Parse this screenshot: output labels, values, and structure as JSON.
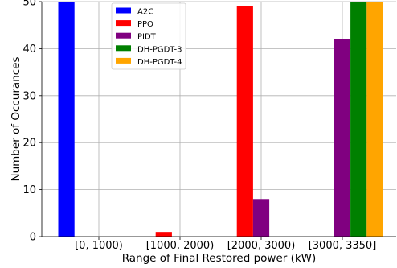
{
  "chart_data": {
    "type": "bar",
    "title": "",
    "xlabel": "Range of Final Restored power (kW)",
    "ylabel": "Number of Occurances",
    "categories": [
      "[0, 1000)",
      "[1000, 2000)",
      "[2000, 3000)",
      "[3000, 3350]"
    ],
    "series": [
      {
        "name": "A2C",
        "color": "#0000ff",
        "values": [
          50,
          0,
          0,
          0
        ]
      },
      {
        "name": "PPO",
        "color": "#ff0000",
        "values": [
          0,
          1,
          49,
          0
        ]
      },
      {
        "name": "PIDT",
        "color": "#800080",
        "values": [
          0,
          0,
          8,
          42
        ]
      },
      {
        "name": "DH-PGDT-3",
        "color": "#008000",
        "values": [
          0,
          0,
          0,
          50
        ]
      },
      {
        "name": "DH-PGDT-4",
        "color": "#ffa500",
        "values": [
          0,
          0,
          0,
          50
        ]
      }
    ],
    "ylim": [
      0,
      50
    ],
    "yticks": [
      0,
      10,
      20,
      30,
      40,
      50
    ],
    "grid": true,
    "legend_position": "top-left"
  }
}
